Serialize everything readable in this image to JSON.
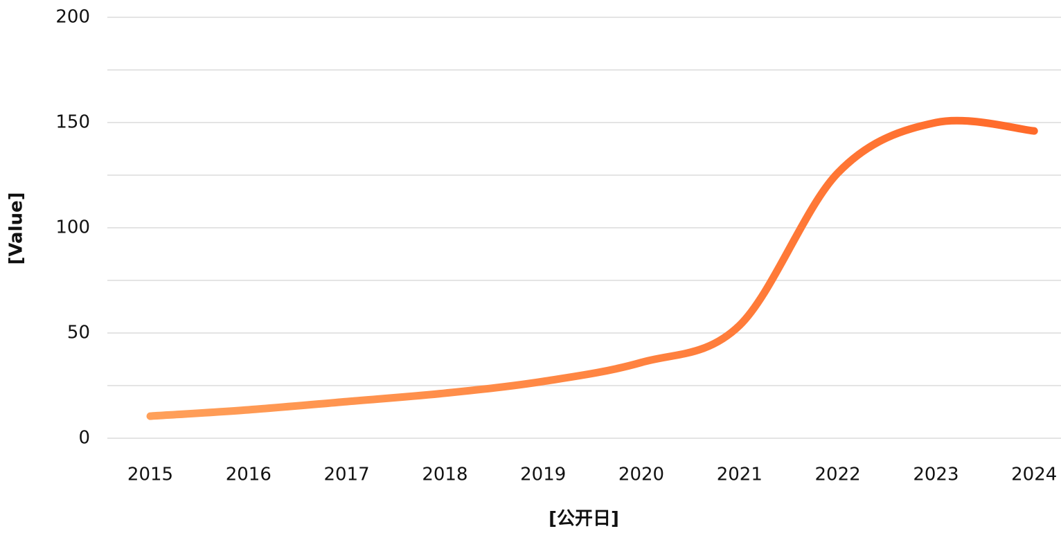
{
  "chart_data": {
    "type": "line",
    "x_label": "[公开日]",
    "y_label": "[Value]",
    "categories": [
      "2015",
      "2016",
      "2017",
      "2018",
      "2019",
      "2020",
      "2021",
      "2022",
      "2023",
      "2024"
    ],
    "series": [
      {
        "name": "Value",
        "colors": [
          "#ffa05a",
          "#ff6a2a"
        ],
        "values": [
          10.5,
          13.5,
          17.4,
          21.4,
          27,
          36,
          53.6,
          126,
          150,
          146
        ]
      }
    ],
    "ylim": [
      0,
      200
    ],
    "yticks": [
      0,
      50,
      100,
      150,
      200
    ],
    "minor_grid": [
      25,
      75,
      125,
      175
    ],
    "grid": true,
    "smooth": true
  }
}
